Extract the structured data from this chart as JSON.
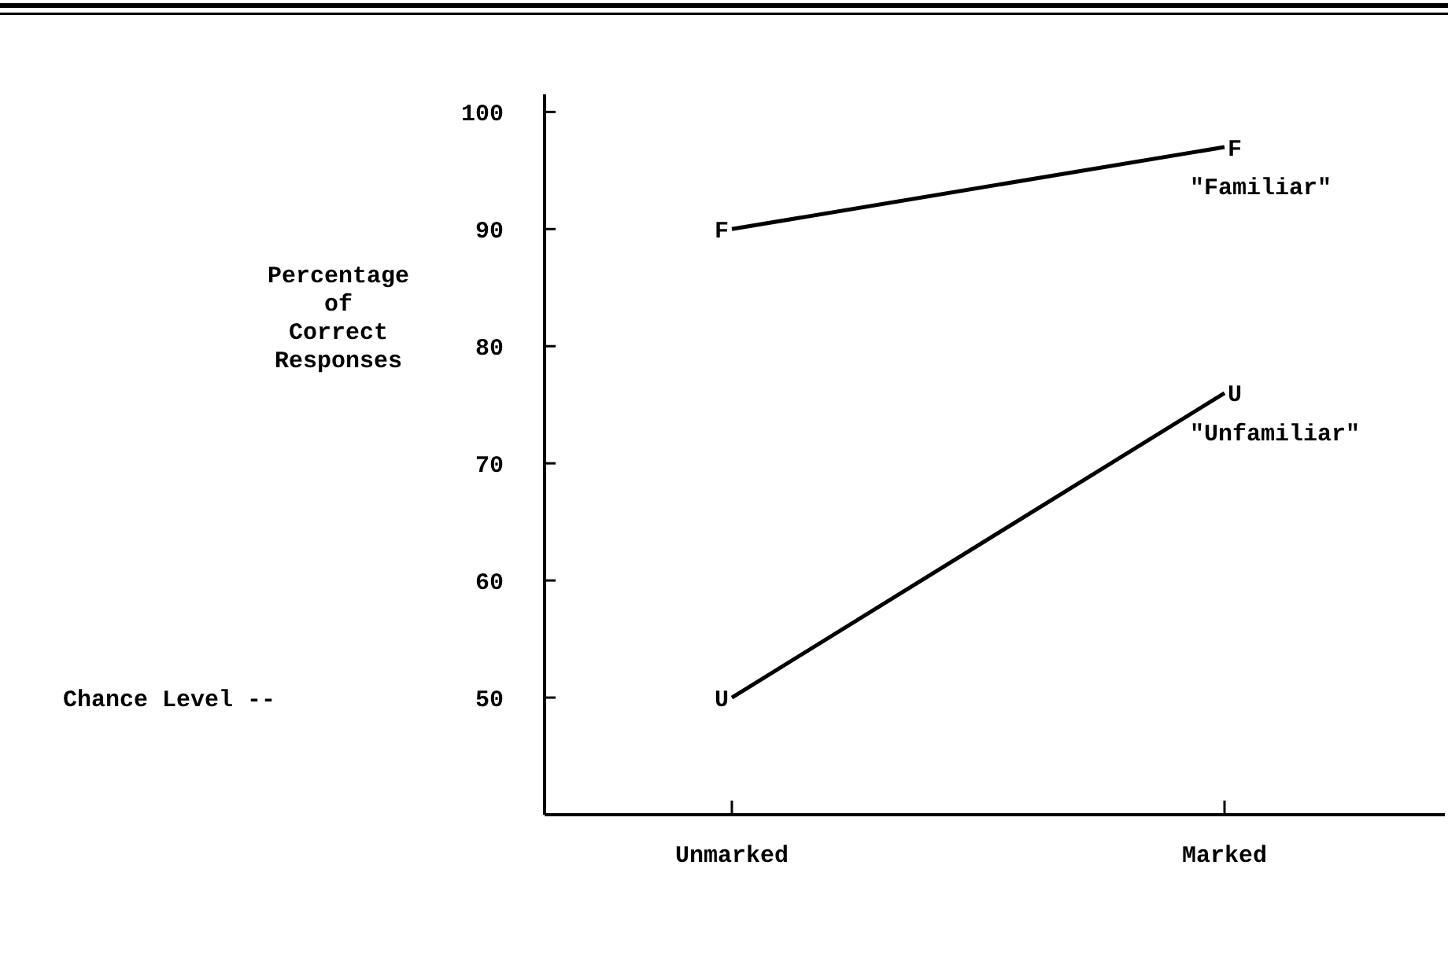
{
  "chart_data": {
    "type": "line",
    "ylabel": "Percentage\nof\nCorrect\nResponses",
    "categories": [
      "Unmarked",
      "Marked"
    ],
    "series": [
      {
        "name": "\"Familiar\"",
        "color": "#000000",
        "values": [
          90,
          97
        ]
      },
      {
        "name": "\"Unfamiliar\"",
        "color": "#000000",
        "values": [
          50,
          76
        ]
      }
    ],
    "ylim": [
      40,
      101.5
    ],
    "yticks": [
      50,
      60,
      70,
      80,
      90,
      100
    ],
    "grid": false,
    "marker": "none",
    "line_style": "solid",
    "annotations": [
      {
        "text": "F",
        "x": "Unmarked",
        "y": 90
      },
      {
        "text": "F",
        "x": "Marked",
        "y": 97
      },
      {
        "text": "U",
        "x": "Unmarked",
        "y": 50
      },
      {
        "text": "U",
        "x": "Marked",
        "y": 76
      },
      "Chance Level --"
    ]
  }
}
